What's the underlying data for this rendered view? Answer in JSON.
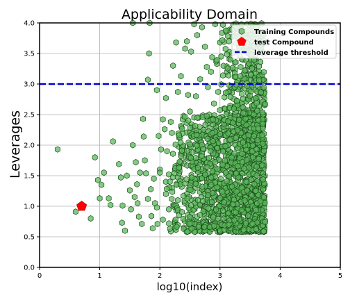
{
  "chart_data": {
    "type": "scatter",
    "title": "Applicability Domain",
    "xlabel": "log10(index)",
    "ylabel": "Leverages",
    "xlim": [
      0,
      5
    ],
    "ylim": [
      0,
      4
    ],
    "xticks": [
      "0",
      "1",
      "2",
      "3",
      "4",
      "5"
    ],
    "yticks": [
      "0.0",
      "0.5",
      "1.0",
      "1.5",
      "2.0",
      "2.5",
      "3.0",
      "3.5",
      "4.0"
    ],
    "grid": true,
    "legend_position": "top-right",
    "threshold": {
      "name": "leverage threshold",
      "y": 3.0,
      "color": "#0000cc"
    },
    "series": [
      {
        "name": "Training Compounds",
        "marker": "hexagon",
        "color": "#5cb85c",
        "points": [
          [
            0.3,
            1.93
          ],
          [
            0.6,
            0.91
          ],
          [
            0.85,
            0.8
          ],
          [
            0.92,
            1.8
          ],
          [
            0.97,
            1.43
          ],
          [
            1.0,
            1.13
          ],
          [
            1.03,
            1.35
          ],
          [
            1.07,
            1.55
          ],
          [
            1.15,
            1.13
          ],
          [
            1.18,
            1.02
          ],
          [
            1.22,
            2.06
          ],
          [
            1.32,
            1.69
          ],
          [
            1.35,
            1.47
          ],
          [
            1.37,
            0.73
          ],
          [
            1.38,
            1.01
          ],
          [
            1.42,
            0.6
          ],
          [
            1.45,
            1.5
          ],
          [
            1.5,
            1.26
          ],
          [
            1.52,
            0.95
          ],
          [
            1.55,
            2.0
          ],
          [
            1.58,
            1.15
          ],
          [
            1.6,
            1.72
          ],
          [
            1.62,
            1.36
          ],
          [
            1.63,
            1.05
          ],
          [
            1.65,
            0.83
          ],
          [
            1.67,
            1.55
          ],
          [
            1.7,
            0.71
          ],
          [
            1.72,
            2.43
          ],
          [
            1.73,
            2.14
          ],
          [
            1.75,
            1.75
          ],
          [
            1.77,
            1.54
          ],
          [
            1.8,
            1.12
          ],
          [
            1.8,
            3.07
          ],
          [
            1.82,
            3.5
          ],
          [
            1.83,
            4.0
          ],
          [
            1.85,
            1.28
          ],
          [
            1.86,
            0.84
          ],
          [
            1.88,
            0.64
          ],
          [
            1.9,
            1.45
          ],
          [
            1.92,
            1.05
          ],
          [
            1.95,
            2.9
          ],
          [
            1.96,
            0.71
          ],
          [
            1.98,
            2.15
          ],
          [
            2.0,
            1.6
          ],
          [
            2.02,
            1.93
          ],
          [
            2.05,
            2.42
          ],
          [
            2.08,
            2.26
          ],
          [
            2.1,
            2.77
          ],
          [
            2.12,
            1.9
          ],
          [
            2.15,
            1.52
          ],
          [
            2.18,
            2.38
          ],
          [
            2.2,
            2.2
          ],
          [
            2.22,
            3.3
          ],
          [
            2.25,
            1.6
          ],
          [
            2.27,
            3.68
          ],
          [
            2.3,
            2.87
          ],
          [
            2.32,
            1.97
          ],
          [
            2.35,
            3.13
          ],
          [
            2.38,
            2.42
          ],
          [
            2.4,
            1.7
          ],
          [
            2.42,
            3.58
          ],
          [
            2.45,
            3.7
          ],
          [
            2.47,
            2.82
          ],
          [
            2.5,
            2.55
          ],
          [
            2.52,
            3.53
          ],
          [
            2.55,
            2.3
          ],
          [
            2.57,
            3.98
          ],
          [
            2.6,
            2.8
          ],
          [
            2.62,
            3.8
          ],
          [
            2.65,
            2.45
          ],
          [
            2.67,
            3.08
          ],
          [
            2.7,
            3.93
          ],
          [
            2.72,
            2.2
          ],
          [
            2.75,
            3.61
          ],
          [
            2.78,
            3.28
          ],
          [
            2.8,
            2.95
          ],
          [
            2.82,
            2.5
          ],
          [
            2.85,
            3.2
          ],
          [
            2.87,
            3.44
          ],
          [
            2.9,
            2.68
          ],
          [
            2.92,
            3.98
          ],
          [
            2.95,
            3.33
          ],
          [
            2.97,
            2.87
          ],
          [
            3.0,
            3.68
          ],
          [
            3.02,
            3.45
          ],
          [
            3.05,
            3.97
          ],
          [
            3.07,
            2.6
          ],
          [
            3.1,
            3.86
          ],
          [
            3.12,
            3.2
          ],
          [
            3.15,
            3.7
          ],
          [
            3.18,
            2.95
          ],
          [
            3.2,
            3.5
          ],
          [
            3.22,
            3.97
          ],
          [
            3.25,
            3.35
          ],
          [
            3.28,
            3.82
          ],
          [
            3.3,
            3.06
          ],
          [
            3.32,
            3.63
          ],
          [
            3.35,
            3.92
          ],
          [
            3.38,
            3.4
          ],
          [
            3.4,
            3.73
          ],
          [
            3.42,
            3.2
          ],
          [
            3.45,
            3.98
          ],
          [
            3.48,
            3.55
          ],
          [
            3.5,
            3.3
          ],
          [
            3.52,
            3.85
          ],
          [
            3.55,
            3.12
          ],
          [
            3.58,
            3.66
          ],
          [
            3.6,
            3.4
          ],
          [
            3.62,
            3.94
          ],
          [
            3.65,
            3.2
          ],
          [
            3.68,
            3.55
          ],
          [
            3.7,
            3.78
          ],
          [
            1.55,
            4.0
          ],
          [
            2.0,
            1.55
          ],
          [
            2.1,
            1.4
          ],
          [
            2.2,
            1.3
          ],
          [
            2.3,
            1.1
          ],
          [
            2.15,
            0.95
          ],
          [
            2.25,
            0.75
          ],
          [
            2.35,
            1.45
          ],
          [
            2.45,
            1.2
          ],
          [
            2.55,
            1.75
          ],
          [
            2.6,
            2.2
          ],
          [
            2.65,
            1.9
          ],
          [
            2.75,
            1.55
          ],
          [
            2.85,
            2.1
          ],
          [
            2.95,
            1.85
          ],
          [
            3.05,
            2.3
          ],
          [
            2.4,
            0.65
          ],
          [
            2.55,
            0.7
          ],
          [
            2.7,
            0.62
          ],
          [
            2.8,
            0.6
          ],
          [
            2.9,
            0.68
          ],
          [
            2.05,
            0.78
          ],
          [
            1.95,
            0.98
          ],
          [
            2.1,
            1.2
          ]
        ],
        "dense_region": {
          "x": [
            2.1,
            3.75
          ],
          "y": [
            0.58,
            2.5
          ],
          "count": 1400,
          "xskew": 0.55
        },
        "upper_region": {
          "x": [
            2.9,
            3.75
          ],
          "y": [
            2.5,
            4.0
          ],
          "count": 260,
          "xskew": 0.5
        }
      },
      {
        "name": "test Compound",
        "marker": "pentagon",
        "color": "#ff0000",
        "points": [
          [
            0.7,
            1.0
          ]
        ]
      }
    ]
  }
}
